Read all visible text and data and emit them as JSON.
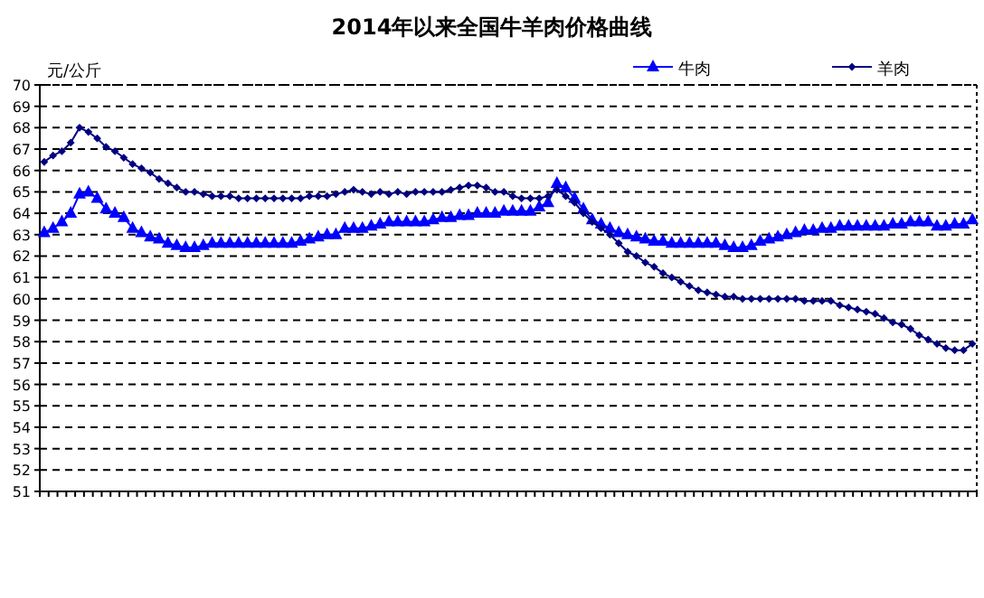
{
  "chart_data": {
    "type": "line",
    "title": "2014年以来全国牛羊肉价格曲线",
    "ylabel": "元/公斤",
    "categories": [
      null,
      null,
      null,
      null,
      null,
      null,
      null,
      null,
      null,
      null,
      null,
      null,
      null,
      null,
      null,
      null,
      null,
      null,
      null,
      null,
      null,
      null,
      null,
      null,
      null,
      null,
      null,
      null,
      null,
      null,
      null,
      null,
      null,
      null,
      null,
      null,
      null,
      null,
      null,
      null,
      null,
      null,
      null,
      null,
      null,
      null,
      null,
      null,
      null,
      null,
      null,
      null,
      null,
      null,
      null,
      null,
      null,
      null,
      null,
      null,
      null,
      null,
      null,
      null,
      null,
      null,
      null,
      null,
      null,
      null,
      null,
      null,
      null,
      null,
      null,
      null,
      null,
      null,
      null,
      null,
      null,
      null,
      null,
      null,
      null,
      null,
      null,
      null,
      null,
      null,
      null,
      null,
      null,
      null,
      null,
      null,
      null,
      null,
      null,
      null,
      null,
      null,
      null,
      null,
      null,
      null
    ],
    "series": [
      {
        "name": "牛肉",
        "color": "#0000ff",
        "marker": "triangle",
        "values": [
          63.1,
          63.3,
          63.6,
          64.0,
          64.9,
          65.0,
          64.7,
          64.2,
          64.0,
          63.8,
          63.3,
          63.1,
          62.9,
          62.8,
          62.6,
          62.5,
          62.4,
          62.4,
          62.5,
          62.6,
          62.6,
          62.6,
          62.6,
          62.6,
          62.6,
          62.6,
          62.6,
          62.6,
          62.6,
          62.7,
          62.8,
          62.9,
          63.0,
          63.0,
          63.3,
          63.3,
          63.3,
          63.4,
          63.5,
          63.6,
          63.6,
          63.6,
          63.6,
          63.6,
          63.7,
          63.8,
          63.8,
          63.9,
          63.9,
          64.0,
          64.0,
          64.0,
          64.1,
          64.1,
          64.1,
          64.1,
          64.3,
          64.5,
          65.4,
          65.2,
          64.7,
          64.2,
          63.7,
          63.5,
          63.3,
          63.1,
          63.0,
          62.9,
          62.8,
          62.7,
          62.7,
          62.6,
          62.6,
          62.6,
          62.6,
          62.6,
          62.6,
          62.5,
          62.4,
          62.4,
          62.5,
          62.7,
          62.8,
          62.9,
          63.0,
          63.1,
          63.2,
          63.2,
          63.3,
          63.3,
          63.4,
          63.4,
          63.4,
          63.4,
          63.4,
          63.4,
          63.5,
          63.5,
          63.6,
          63.6,
          63.6,
          63.4,
          63.4,
          63.5,
          63.5,
          63.7
        ]
      },
      {
        "name": "羊肉",
        "color": "#000080",
        "marker": "diamond",
        "values": [
          66.4,
          66.7,
          66.9,
          67.3,
          68.0,
          67.8,
          67.5,
          67.1,
          66.9,
          66.6,
          66.3,
          66.1,
          65.9,
          65.6,
          65.4,
          65.2,
          65.0,
          65.0,
          64.9,
          64.8,
          64.8,
          64.8,
          64.7,
          64.7,
          64.7,
          64.7,
          64.7,
          64.7,
          64.7,
          64.7,
          64.8,
          64.8,
          64.8,
          64.9,
          65.0,
          65.1,
          65.0,
          64.9,
          65.0,
          64.9,
          65.0,
          64.9,
          65.0,
          65.0,
          65.0,
          65.0,
          65.1,
          65.2,
          65.3,
          65.3,
          65.2,
          65.0,
          65.0,
          64.8,
          64.7,
          64.7,
          64.7,
          64.8,
          65.1,
          64.8,
          64.5,
          64.0,
          63.6,
          63.3,
          63.0,
          62.6,
          62.2,
          62.0,
          61.7,
          61.5,
          61.2,
          61.0,
          60.8,
          60.6,
          60.4,
          60.3,
          60.2,
          60.1,
          60.1,
          60.0,
          60.0,
          60.0,
          60.0,
          60.0,
          60.0,
          60.0,
          59.9,
          59.9,
          59.9,
          59.9,
          59.7,
          59.6,
          59.5,
          59.4,
          59.3,
          59.1,
          58.9,
          58.8,
          58.6,
          58.3,
          58.1,
          57.9,
          57.7,
          57.6,
          57.6,
          57.9
        ]
      }
    ],
    "ylim": [
      51,
      70
    ],
    "yticks": [
      51,
      52,
      53,
      54,
      55,
      56,
      57,
      58,
      59,
      60,
      61,
      62,
      63,
      64,
      65,
      66,
      67,
      68,
      69,
      70
    ],
    "grid": "y",
    "legend": "top right"
  }
}
